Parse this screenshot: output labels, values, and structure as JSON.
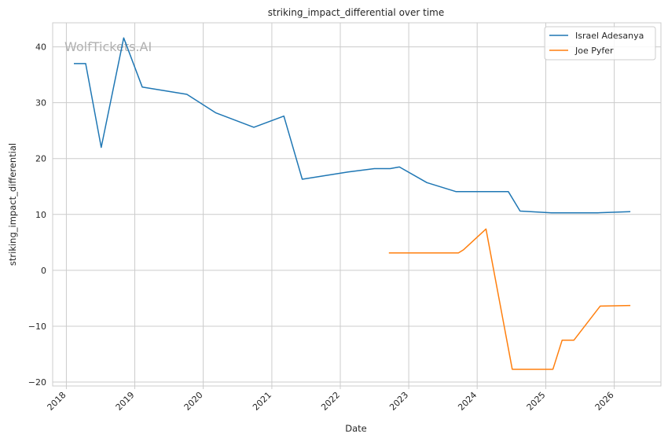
{
  "chart_data": {
    "type": "line",
    "title": "striking_impact_differential over time",
    "xlabel": "Date",
    "ylabel": "striking_impact_differential",
    "watermark": "WolfTickets.AI",
    "xlim": [
      "2017-10-20",
      "2026-09-07"
    ],
    "ylim": [
      -20.7,
      44.3
    ],
    "x_ticks": [
      "2018",
      "2019",
      "2020",
      "2021",
      "2022",
      "2023",
      "2024",
      "2025",
      "2026"
    ],
    "y_ticks": [
      -20,
      -10,
      0,
      10,
      20,
      30,
      40
    ],
    "grid": true,
    "legend_position": "top-right",
    "series": [
      {
        "name": "Israel Adesanya",
        "color": "#1f77b4",
        "points": [
          {
            "x": "2018-02-10",
            "y": 37.0
          },
          {
            "x": "2018-04-14",
            "y": 37.0
          },
          {
            "x": "2018-07-06",
            "y": 22.0
          },
          {
            "x": "2018-11-03",
            "y": 41.6
          },
          {
            "x": "2019-02-10",
            "y": 32.8
          },
          {
            "x": "2019-10-06",
            "y": 31.5
          },
          {
            "x": "2020-03-07",
            "y": 28.2
          },
          {
            "x": "2020-09-27",
            "y": 25.6
          },
          {
            "x": "2021-03-06",
            "y": 27.6
          },
          {
            "x": "2021-06-12",
            "y": 16.3
          },
          {
            "x": "2022-02-12",
            "y": 17.6
          },
          {
            "x": "2022-07-02",
            "y": 18.2
          },
          {
            "x": "2022-09-24",
            "y": 18.2
          },
          {
            "x": "2022-11-12",
            "y": 18.5
          },
          {
            "x": "2023-04-08",
            "y": 15.7
          },
          {
            "x": "2023-09-09",
            "y": 14.1
          },
          {
            "x": "2024-06-15",
            "y": 14.1
          },
          {
            "x": "2024-08-17",
            "y": 10.6
          },
          {
            "x": "2025-02-01",
            "y": 10.3
          },
          {
            "x": "2025-10-04",
            "y": 10.3
          },
          {
            "x": "2026-03-28",
            "y": 10.5
          }
        ]
      },
      {
        "name": "Joe Pyfer",
        "color": "#ff7f0e",
        "points": [
          {
            "x": "2022-09-17",
            "y": 3.1
          },
          {
            "x": "2023-09-23",
            "y": 3.1
          },
          {
            "x": "2023-10-21",
            "y": 3.7
          },
          {
            "x": "2024-02-17",
            "y": 7.4
          },
          {
            "x": "2024-07-06",
            "y": -17.7
          },
          {
            "x": "2025-02-08",
            "y": -17.7
          },
          {
            "x": "2025-03-29",
            "y": -12.5
          },
          {
            "x": "2025-05-31",
            "y": -12.5
          },
          {
            "x": "2025-10-18",
            "y": -6.4
          },
          {
            "x": "2026-03-28",
            "y": -6.3
          }
        ]
      }
    ]
  }
}
